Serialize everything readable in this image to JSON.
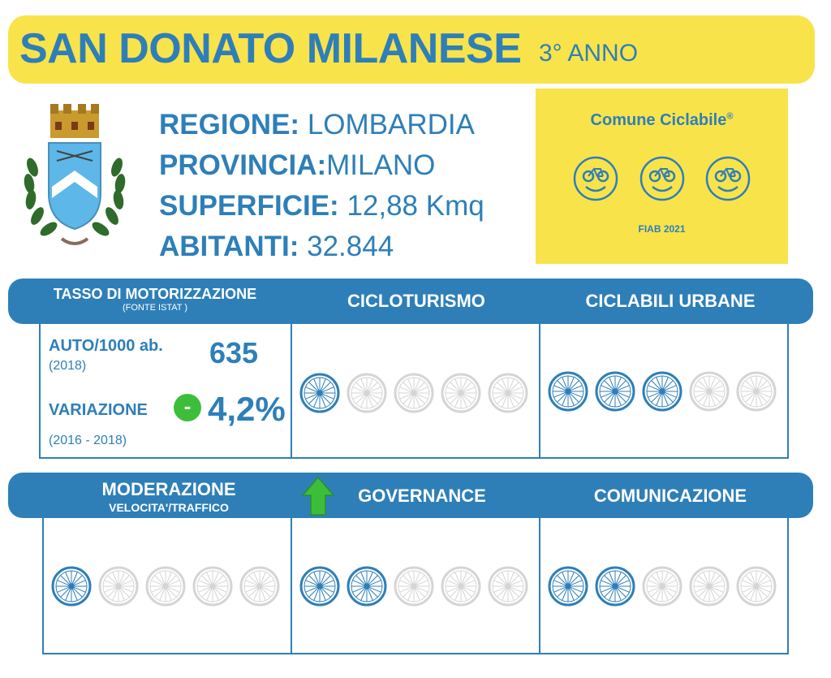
{
  "header": {
    "town": "SAN DONATO MILANESE",
    "year": "3° ANNO"
  },
  "info": {
    "regione_label": "REGIONE:",
    "regione_value": "LOMBARDIA",
    "provincia_label": "PROVINCIA:",
    "provincia_value": "MILANO",
    "superficie_label": "SUPERFICIE:",
    "superficie_value": "12,88 Kmq",
    "abitanti_label": "ABITANTI:",
    "abitanti_value": "32.844"
  },
  "badge": {
    "title": "Comune Ciclabile",
    "trademark": "®",
    "footer": "FIAB 2021",
    "faces": 3
  },
  "section1": {
    "motor_title": "TASSO DI MOTORIZZAZIONE",
    "motor_source": "(FONTE ISTAT )",
    "cicloturismo": "CICLOTURISMO",
    "ciclabili": "CICLABILI URBANE",
    "auto_label": "AUTO/1000 ab.",
    "auto_year": "(2018)",
    "auto_value": "635",
    "variazione_label": "VARIAZIONE",
    "variazione_sign": "-",
    "variazione_value": "4,2%",
    "variazione_years": "(2016 - 2018)"
  },
  "section2": {
    "moderazione": "MODERAZIONE",
    "moderazione_sub": "VELOCITA'/TRAFFICO",
    "governance": "GOVERNANCE",
    "comunicazione": "COMUNICAZIONE"
  },
  "ratings": {
    "max": 5,
    "cicloturismo": 1,
    "ciclabili_urbane": 3,
    "moderazione": 1,
    "governance": 2,
    "comunicazione": 2
  },
  "trend_icon": "up-arrow-icon",
  "colors": {
    "blue": "#2E7FB8",
    "yellow": "#F9E34A",
    "green": "#3DBE3A",
    "grey_wheel": "#D5D5D5"
  }
}
